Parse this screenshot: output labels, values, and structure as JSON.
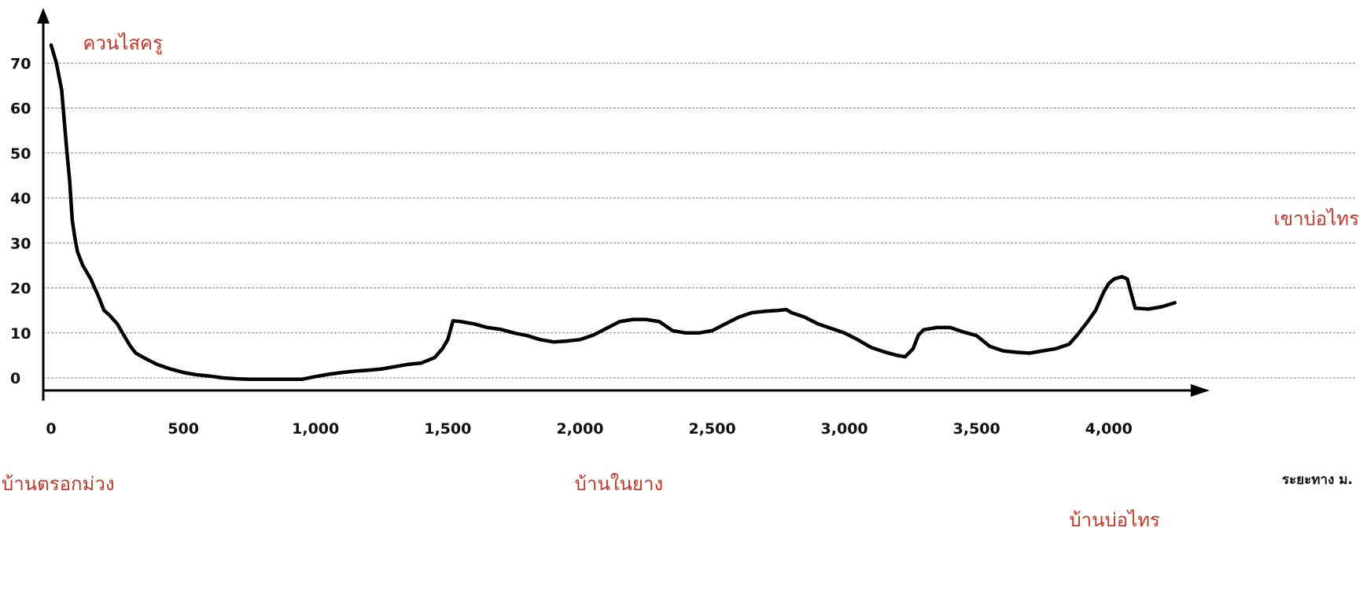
{
  "chart_data": {
    "type": "line",
    "title": "",
    "xlabel": "ระยะทาง ม.",
    "ylabel": "",
    "xlim": [
      0,
      4300
    ],
    "ylim": [
      -2,
      76
    ],
    "grid": true,
    "x_ticks": [
      0,
      500,
      1000,
      1500,
      2000,
      2500,
      3000,
      3500,
      4000
    ],
    "x_tick_labels": [
      "0",
      "500",
      "1,000",
      "1,500",
      "2,000",
      "2,500",
      "3,000",
      "3,500",
      "4,000"
    ],
    "y_ticks": [
      0,
      10,
      20,
      30,
      40,
      50,
      60,
      70
    ],
    "y_tick_labels": [
      "0",
      "10",
      "20",
      "30",
      "40",
      "50",
      "60",
      "70"
    ],
    "series": [
      {
        "x": [
          0,
          20,
          40,
          60,
          70,
          80,
          90,
          100,
          120,
          150,
          180,
          200,
          220,
          250,
          280,
          300,
          320,
          350,
          400,
          450,
          500,
          550,
          600,
          650,
          700,
          750,
          800,
          850,
          900,
          950,
          1000,
          1050,
          1100,
          1150,
          1200,
          1250,
          1300,
          1350,
          1400,
          1450,
          1480,
          1500,
          1520,
          1550,
          1600,
          1650,
          1700,
          1750,
          1800,
          1850,
          1900,
          1950,
          2000,
          2050,
          2100,
          2150,
          2200,
          2250,
          2300,
          2350,
          2400,
          2450,
          2500,
          2550,
          2600,
          2650,
          2700,
          2750,
          2780,
          2800,
          2850,
          2900,
          2950,
          3000,
          3050,
          3100,
          3150,
          3200,
          3230,
          3260,
          3280,
          3300,
          3350,
          3400,
          3450,
          3500,
          3550,
          3600,
          3650,
          3700,
          3750,
          3800,
          3850,
          3880,
          3920,
          3950,
          3980,
          4000,
          4020,
          4050,
          4070,
          4100,
          4150,
          4200,
          4250
        ],
        "values": [
          74,
          70,
          64,
          50,
          44,
          35,
          31,
          28,
          25,
          22,
          18,
          15,
          14,
          12,
          9,
          7,
          5.5,
          4.5,
          3,
          2,
          1.2,
          0.7,
          0.4,
          0,
          -0.2,
          -0.3,
          -0.3,
          -0.3,
          -0.3,
          -0.3,
          0.3,
          0.8,
          1.2,
          1.5,
          1.7,
          2,
          2.5,
          3,
          3.3,
          4.5,
          6.5,
          8.5,
          12.7,
          12.5,
          12,
          11.2,
          10.8,
          10,
          9.4,
          8.5,
          8,
          8.2,
          8.5,
          9.5,
          11,
          12.5,
          13,
          13,
          12.5,
          10.5,
          10,
          10,
          10.5,
          12,
          13.5,
          14.5,
          14.8,
          15,
          15.2,
          14.5,
          13.5,
          12,
          11,
          10,
          8.5,
          6.8,
          5.8,
          5,
          4.7,
          6.5,
          9.5,
          10.7,
          11.2,
          11.2,
          10.2,
          9.4,
          7,
          6,
          5.7,
          5.5,
          6,
          6.5,
          7.5,
          9.5,
          12.5,
          15,
          19,
          21,
          22,
          22.5,
          22,
          15.5,
          15.3,
          15.8,
          16.7
        ]
      }
    ],
    "annotations": [
      {
        "id": "khuan-sai-khru",
        "text": "ควนไสครู",
        "x": 120,
        "y": 73
      },
      {
        "id": "khao-bo-sai",
        "text": "เขาบ่อไทร",
        "x": 4300,
        "y": 34
      },
      {
        "id": "ban-trok-muang",
        "text": "บ้านตรอกม่วง",
        "x": 0,
        "y": -25
      },
      {
        "id": "ban-nai-yang",
        "text": "บ้านในยาง",
        "x": 1980,
        "y": -25
      },
      {
        "id": "ban-bo-sai",
        "text": "บ้านบ่อไทร",
        "x": 3850,
        "y": -33
      }
    ]
  },
  "colors": {
    "line": "#000000",
    "grid": "#808080",
    "axis": "#000000",
    "annotation": "#c0392b",
    "tick_text": "#111111"
  }
}
